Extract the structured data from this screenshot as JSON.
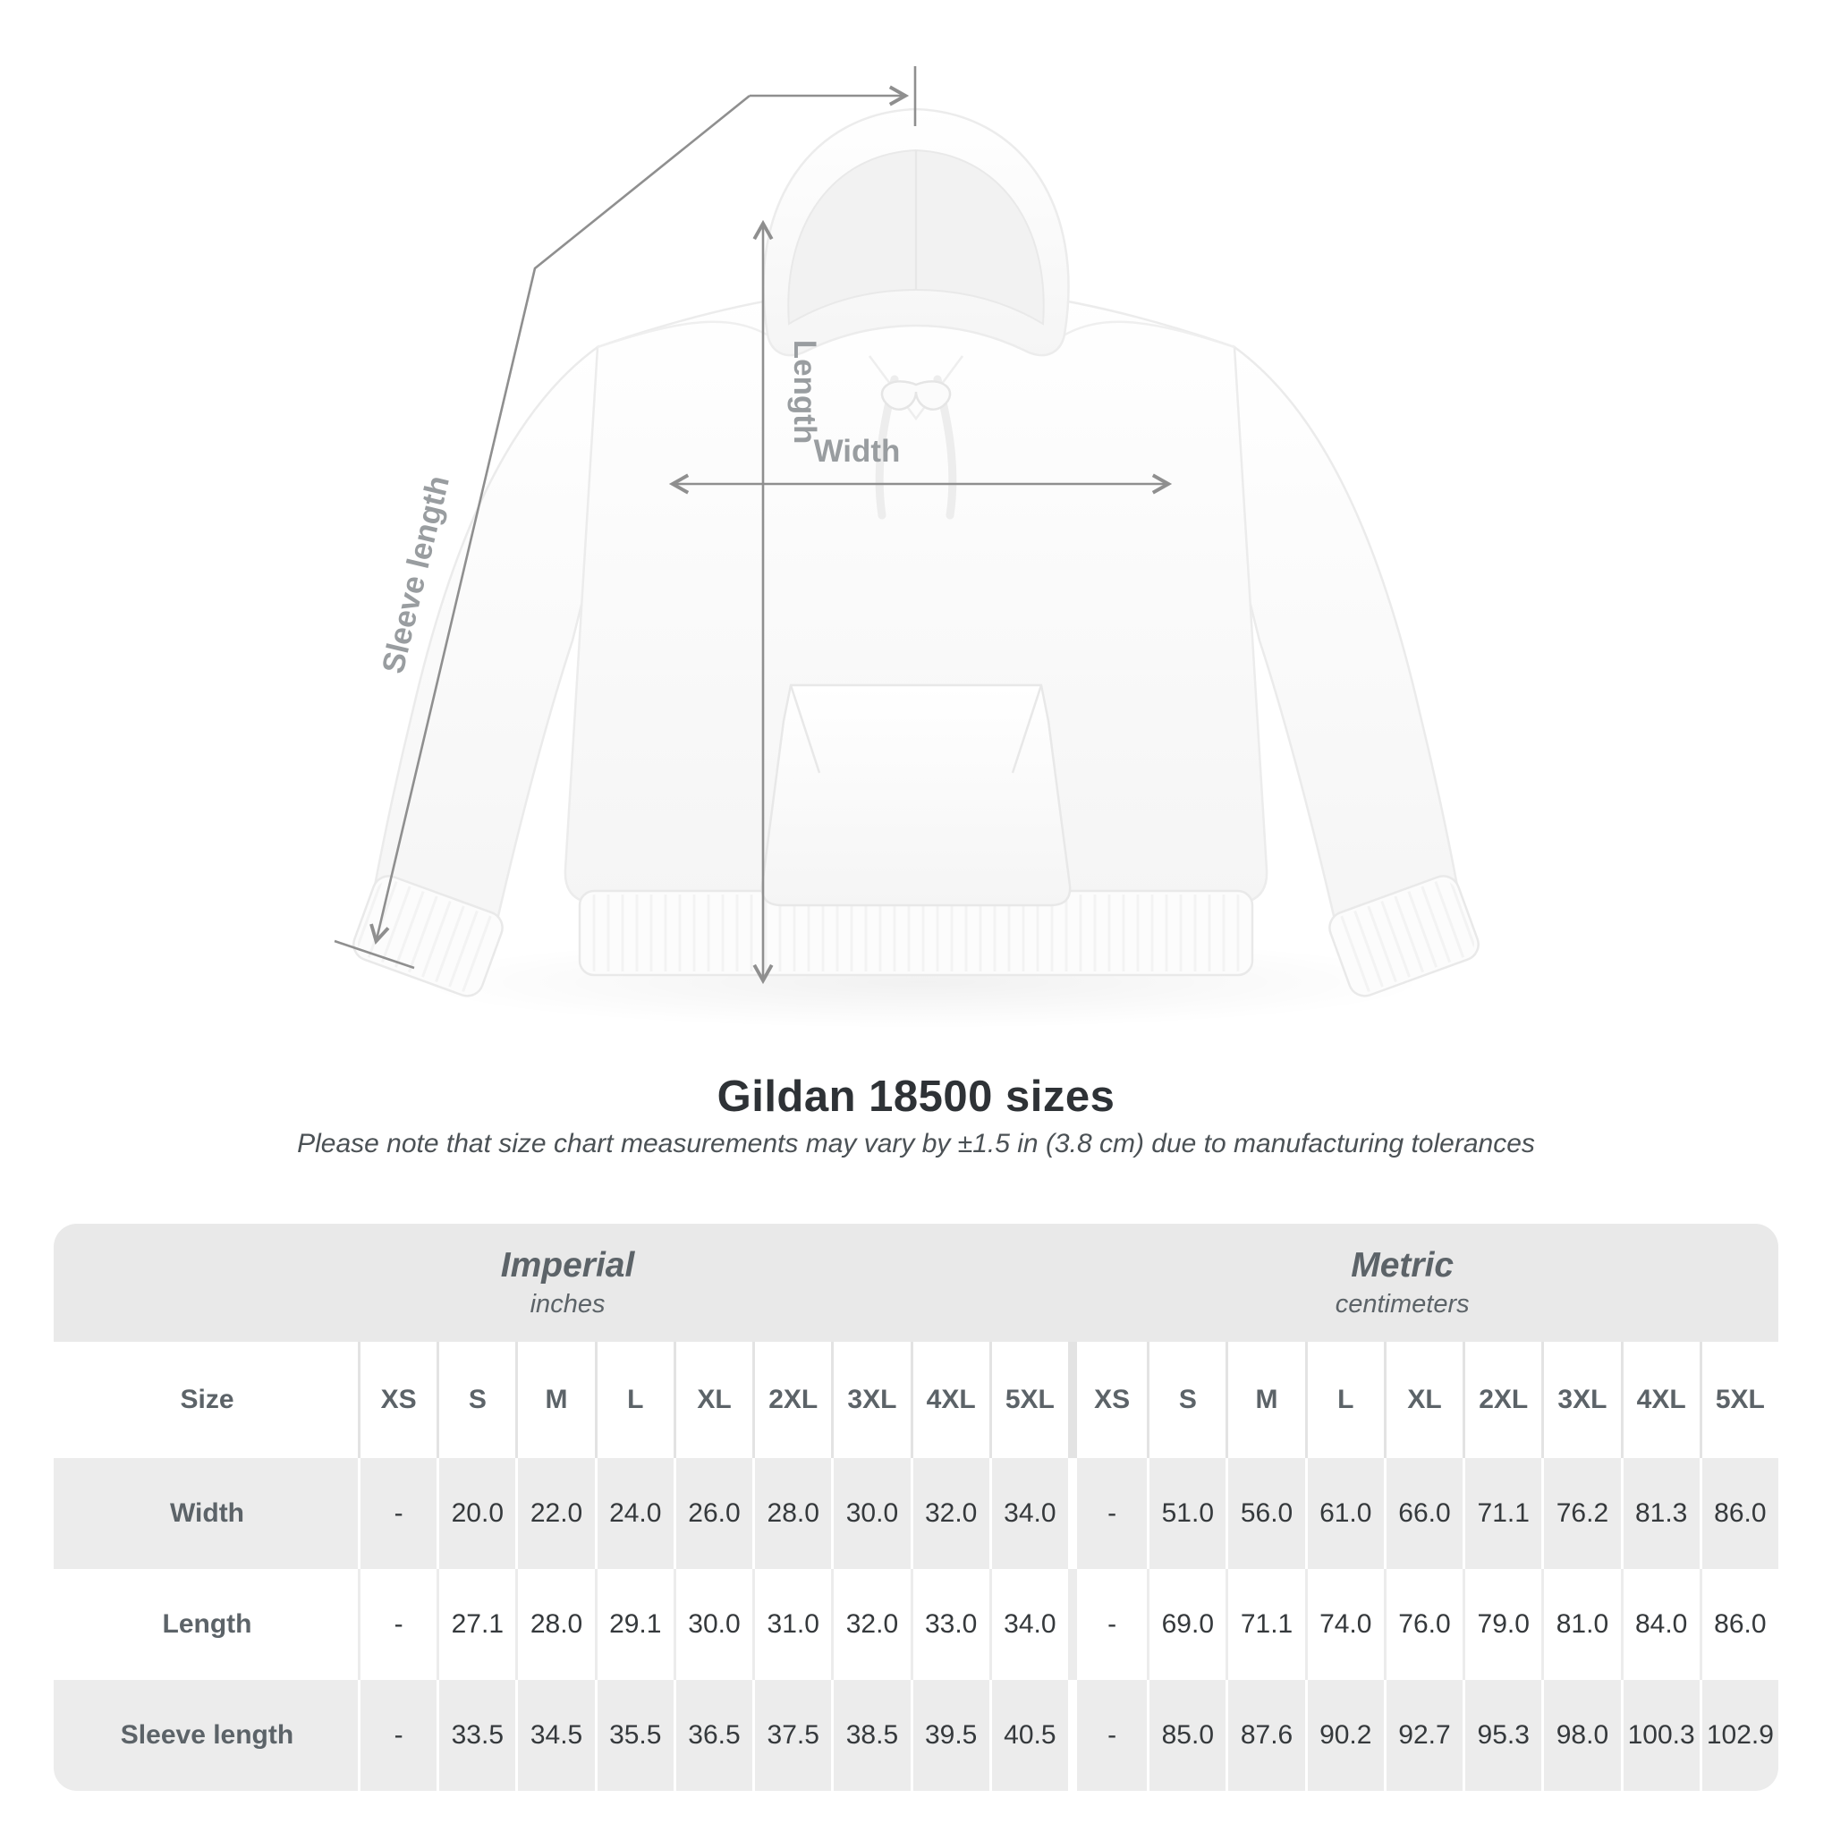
{
  "diagram": {
    "measurements": {
      "length_label": "Length",
      "width_label": "Width",
      "sleeve_label": "Sleeve length"
    }
  },
  "header": {
    "title": "Gildan 18500 sizes",
    "note": "Please note that size chart measurements may vary by ±1.5 in (3.8 cm) due to manufacturing tolerances"
  },
  "table": {
    "size_column_header": "Size",
    "unit_groups": [
      {
        "name": "Imperial",
        "unit": "inches"
      },
      {
        "name": "Metric",
        "unit": "centimeters"
      }
    ],
    "sizes": [
      "XS",
      "S",
      "M",
      "L",
      "XL",
      "2XL",
      "3XL",
      "4XL",
      "5XL"
    ],
    "rows": [
      {
        "label": "Width",
        "imperial": [
          "-",
          "20.0",
          "22.0",
          "24.0",
          "26.0",
          "28.0",
          "30.0",
          "32.0",
          "34.0"
        ],
        "metric": [
          "-",
          "51.0",
          "56.0",
          "61.0",
          "66.0",
          "71.1",
          "76.2",
          "81.3",
          "86.0"
        ]
      },
      {
        "label": "Length",
        "imperial": [
          "-",
          "27.1",
          "28.0",
          "29.1",
          "30.0",
          "31.0",
          "32.0",
          "33.0",
          "34.0"
        ],
        "metric": [
          "-",
          "69.0",
          "71.1",
          "74.0",
          "76.0",
          "79.0",
          "81.0",
          "84.0",
          "86.0"
        ]
      },
      {
        "label": "Sleeve length",
        "imperial": [
          "-",
          "33.5",
          "34.5",
          "35.5",
          "36.5",
          "37.5",
          "38.5",
          "39.5",
          "40.5"
        ],
        "metric": [
          "-",
          "85.0",
          "87.6",
          "90.2",
          "92.7",
          "95.3",
          "98.0",
          "100.3",
          "102.9"
        ]
      }
    ]
  },
  "chart_data": {
    "type": "table",
    "title": "Gildan 18500 sizes",
    "note": "Measurements may vary by ±1.5 in (3.8 cm) due to manufacturing tolerances",
    "sizes": [
      "XS",
      "S",
      "M",
      "L",
      "XL",
      "2XL",
      "3XL",
      "4XL",
      "5XL"
    ],
    "rows": [
      {
        "label": "Width",
        "inches": [
          null,
          20.0,
          22.0,
          24.0,
          26.0,
          28.0,
          30.0,
          32.0,
          34.0
        ],
        "centimeters": [
          null,
          51.0,
          56.0,
          61.0,
          66.0,
          71.1,
          76.2,
          81.3,
          86.0
        ]
      },
      {
        "label": "Length",
        "inches": [
          null,
          27.1,
          28.0,
          29.1,
          30.0,
          31.0,
          32.0,
          33.0,
          34.0
        ],
        "centimeters": [
          null,
          69.0,
          71.1,
          74.0,
          76.0,
          79.0,
          81.0,
          84.0,
          86.0
        ]
      },
      {
        "label": "Sleeve length",
        "inches": [
          null,
          33.5,
          34.5,
          35.5,
          36.5,
          37.5,
          38.5,
          39.5,
          40.5
        ],
        "centimeters": [
          null,
          85.0,
          87.6,
          90.2,
          92.7,
          95.3,
          98.0,
          100.3,
          102.9
        ]
      }
    ]
  },
  "colors": {
    "band_background": "#e9e9e9",
    "row_gray_background": "#ececec",
    "heading_text": "#5c6368",
    "value_text": "#35393c",
    "title_text": "#2e3236",
    "measure_line": "#8f8f8f",
    "measure_label": "#999da0"
  }
}
